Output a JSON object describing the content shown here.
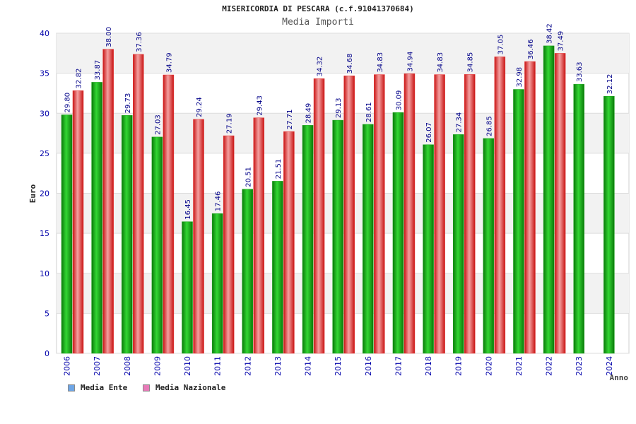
{
  "title": "MISERICORDIA DI PESCARA (c.f.91041370684)",
  "subtitle": "Media Importi",
  "colors": {
    "ente_bar": "#1aa51a",
    "nazionale_bar": "#e63333",
    "axis_text": "#0000aa",
    "legend_ente": "#6ea6e6",
    "legend_nazionale": "#e87ab8"
  },
  "legend": {
    "ente": "Media Ente",
    "nazionale": "Media Nazionale"
  },
  "chart_data": {
    "type": "bar",
    "xlabel": "Anno",
    "ylabel": "Euro",
    "ylim": [
      0,
      40
    ],
    "yticks": [
      0,
      5,
      10,
      15,
      20,
      25,
      30,
      35,
      40
    ],
    "categories": [
      "2006",
      "2007",
      "2008",
      "2009",
      "2010",
      "2011",
      "2012",
      "2013",
      "2014",
      "2015",
      "2016",
      "2017",
      "2018",
      "2019",
      "2020",
      "2021",
      "2022",
      "2023",
      "2024"
    ],
    "series": [
      {
        "name": "Media Ente",
        "values": [
          29.8,
          33.87,
          29.73,
          27.03,
          16.45,
          17.46,
          20.51,
          21.51,
          28.49,
          29.13,
          28.61,
          30.09,
          26.07,
          27.34,
          26.85,
          32.98,
          38.42,
          33.63,
          32.12
        ],
        "labels": [
          "29.80",
          "33.87",
          "29.73",
          "27.03",
          "16.45",
          "17.46",
          "20.51",
          "21.51",
          "28.49",
          "29.13",
          "28.61",
          "30.09",
          "26.07",
          "27.34",
          "26.85",
          "32.98",
          "38.42",
          "33.63",
          "32.12"
        ]
      },
      {
        "name": "Media Nazionale",
        "values": [
          32.82,
          38.0,
          37.36,
          34.79,
          29.24,
          27.19,
          29.43,
          27.71,
          34.32,
          34.68,
          34.83,
          34.94,
          34.83,
          34.85,
          37.05,
          36.46,
          37.49,
          null,
          null
        ],
        "labels": [
          "32.82",
          "38.00",
          "37.36",
          "34.79",
          "29.24",
          "27.19",
          "29.43",
          "27.71",
          "34.32",
          "34.68",
          "34.83",
          "34.94",
          "34.83",
          "34.85",
          "37.05",
          "36.46",
          "37.49",
          "",
          ""
        ]
      }
    ],
    "grid": true,
    "legend_position": "bottom-left"
  }
}
